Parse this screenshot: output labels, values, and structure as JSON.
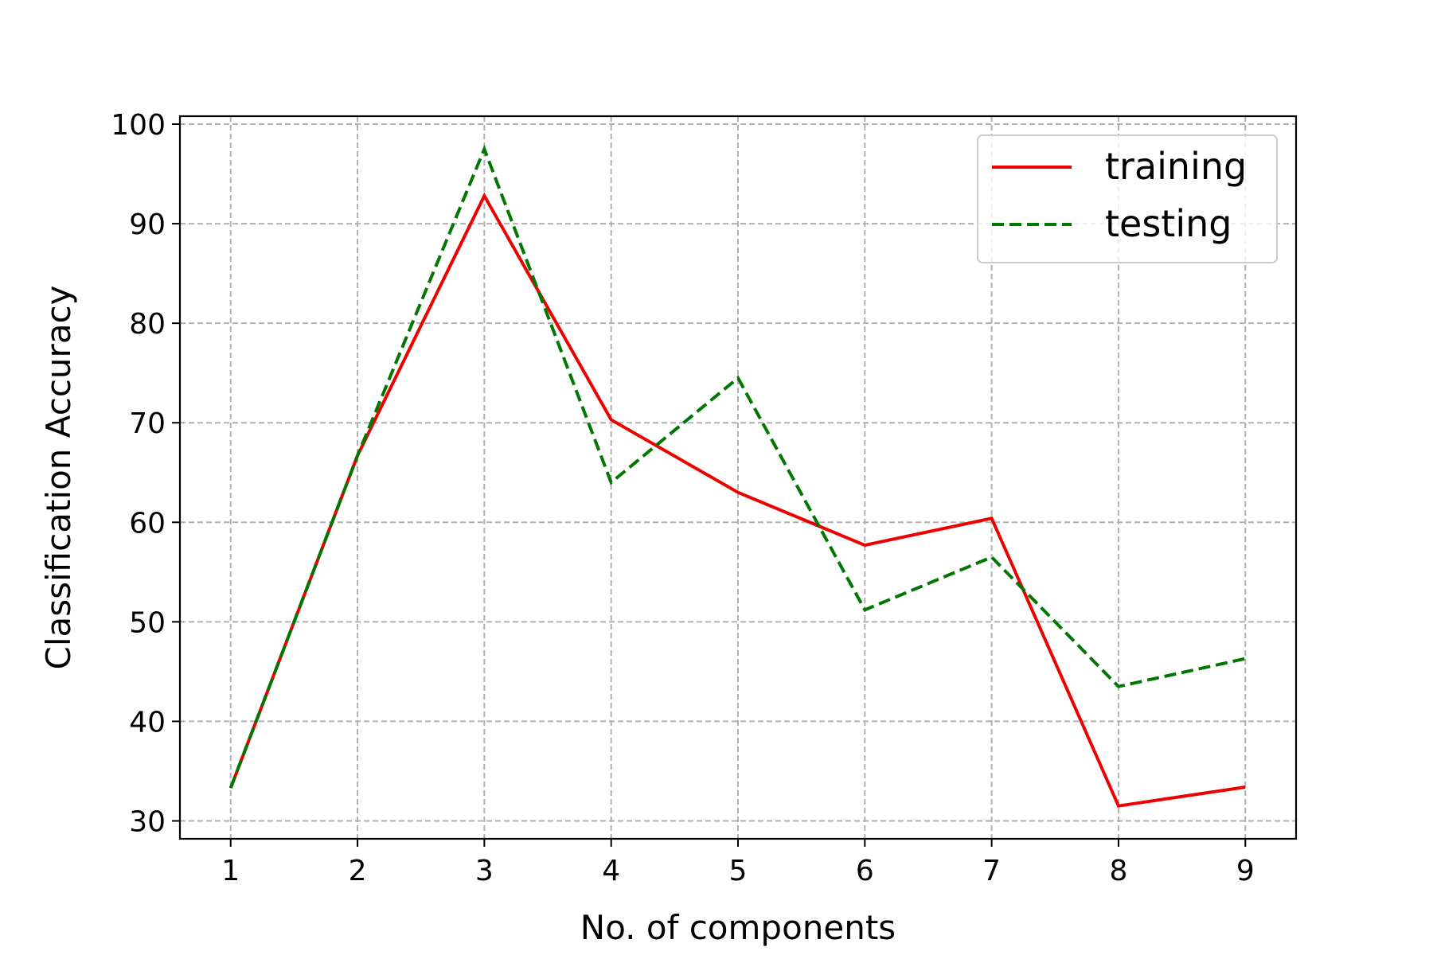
{
  "chart_data": {
    "type": "line",
    "title": "",
    "xlabel": "No. of components",
    "ylabel": "Classification Accuracy",
    "x": [
      1,
      2,
      3,
      4,
      5,
      6,
      7,
      8,
      9
    ],
    "xlim": [
      0.6,
      9.4
    ],
    "ylim": [
      28.2,
      100.8
    ],
    "xticks": [
      1,
      2,
      3,
      4,
      5,
      6,
      7,
      8,
      9
    ],
    "yticks": [
      30,
      40,
      50,
      60,
      70,
      80,
      90,
      100
    ],
    "grid": true,
    "legend": "top-right",
    "series": [
      {
        "name": "training",
        "color": "#ee0000",
        "style": "solid",
        "values": [
          33.3,
          66.7,
          92.8,
          70.3,
          63.0,
          57.7,
          60.4,
          31.5,
          33.4
        ]
      },
      {
        "name": "testing",
        "color": "#007700",
        "style": "dashed",
        "values": [
          33.3,
          66.7,
          97.5,
          64.0,
          74.5,
          51.2,
          56.5,
          43.5,
          46.3
        ]
      }
    ]
  }
}
